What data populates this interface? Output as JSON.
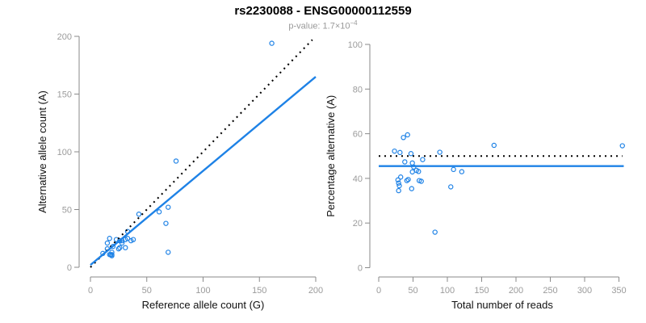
{
  "header": {
    "title": "rs2230088 - ENSG00000112559",
    "subtitle_main": "p-value: 1.7×10",
    "subtitle_exp": "−4"
  },
  "colors": {
    "point_blue": "#1E82E6",
    "line_blue": "#1E82E6",
    "dotted_black": "#000000",
    "axis_gray": "#8A8A8A",
    "tick_label_gray": "#9B9B9B",
    "axis_title_black": "#111111",
    "subtitle_gray": "#999999"
  },
  "chart_data": [
    {
      "type": "scatter",
      "title": "rs2230088 - ENSG00000112559",
      "xlabel": "Reference allele count (G)",
      "ylabel": "Alternative allele count (A)",
      "xlim": [
        0,
        200
      ],
      "ylim": [
        0,
        200
      ],
      "xticks": [
        0,
        50,
        100,
        150,
        200
      ],
      "yticks": [
        0,
        50,
        100,
        150,
        200
      ],
      "grid": false,
      "legend": "none",
      "point_color": "#1E82E6",
      "points": [
        [
          15,
          21
        ],
        [
          17,
          25
        ],
        [
          11,
          12
        ],
        [
          15,
          16
        ],
        [
          23,
          24
        ],
        [
          43,
          46
        ],
        [
          76,
          92
        ],
        [
          20,
          18
        ],
        [
          26,
          23
        ],
        [
          28,
          23
        ],
        [
          33,
          31
        ],
        [
          28,
          21
        ],
        [
          31,
          24
        ],
        [
          33,
          25
        ],
        [
          61,
          48
        ],
        [
          69,
          52
        ],
        [
          19,
          13
        ],
        [
          17,
          11
        ],
        [
          25,
          16
        ],
        [
          26,
          17
        ],
        [
          18,
          11
        ],
        [
          36,
          23
        ],
        [
          38,
          24
        ],
        [
          19,
          11
        ],
        [
          19,
          10
        ],
        [
          31,
          17
        ],
        [
          67,
          38
        ],
        [
          69,
          13
        ],
        [
          161,
          194
        ]
      ],
      "lines": [
        {
          "name": "identity-dotted-line",
          "style": "dotted",
          "color": "#000000",
          "x1": 0,
          "y1": 0,
          "x2": 197,
          "y2": 197
        },
        {
          "name": "regression-line",
          "style": "solid",
          "color": "#1E82E6",
          "x1": 0,
          "y1": 2,
          "x2": 200,
          "y2": 165
        }
      ]
    },
    {
      "type": "scatter",
      "title": "rs2230088 - ENSG00000112559",
      "xlabel": "Total number of reads",
      "ylabel": "Percentage alternative (A)",
      "xlim": [
        0,
        360
      ],
      "ylim": [
        0,
        100
      ],
      "xticks": [
        0,
        50,
        100,
        150,
        200,
        250,
        300,
        350
      ],
      "yticks": [
        0,
        20,
        40,
        60,
        80,
        100
      ],
      "grid": false,
      "legend": "none",
      "point_color": "#1E82E6",
      "points": [
        [
          36,
          58.3
        ],
        [
          42,
          59.5
        ],
        [
          23,
          52.2
        ],
        [
          31,
          51.6
        ],
        [
          47,
          51.1
        ],
        [
          89,
          51.7
        ],
        [
          168,
          54.8
        ],
        [
          38,
          47.4
        ],
        [
          49,
          46.9
        ],
        [
          51,
          45.1
        ],
        [
          64,
          48.4
        ],
        [
          49,
          42.9
        ],
        [
          55,
          43.6
        ],
        [
          58,
          43.1
        ],
        [
          109,
          44.0
        ],
        [
          121,
          43.0
        ],
        [
          32,
          40.6
        ],
        [
          28,
          39.3
        ],
        [
          41,
          39.0
        ],
        [
          43,
          39.5
        ],
        [
          29,
          37.9
        ],
        [
          59,
          39.0
        ],
        [
          62,
          38.7
        ],
        [
          30,
          36.7
        ],
        [
          29,
          34.5
        ],
        [
          48,
          35.4
        ],
        [
          105,
          36.2
        ],
        [
          82,
          15.9
        ],
        [
          355,
          54.6
        ]
      ],
      "lines": [
        {
          "name": "fifty-percent-dotted-line",
          "style": "dotted",
          "color": "#000000",
          "x1": 0,
          "y1": 50,
          "x2": 355,
          "y2": 50
        },
        {
          "name": "mean-percentage-line",
          "style": "solid",
          "color": "#1E82E6",
          "x1": 0,
          "y1": 45.5,
          "x2": 357,
          "y2": 45.5
        }
      ]
    }
  ]
}
